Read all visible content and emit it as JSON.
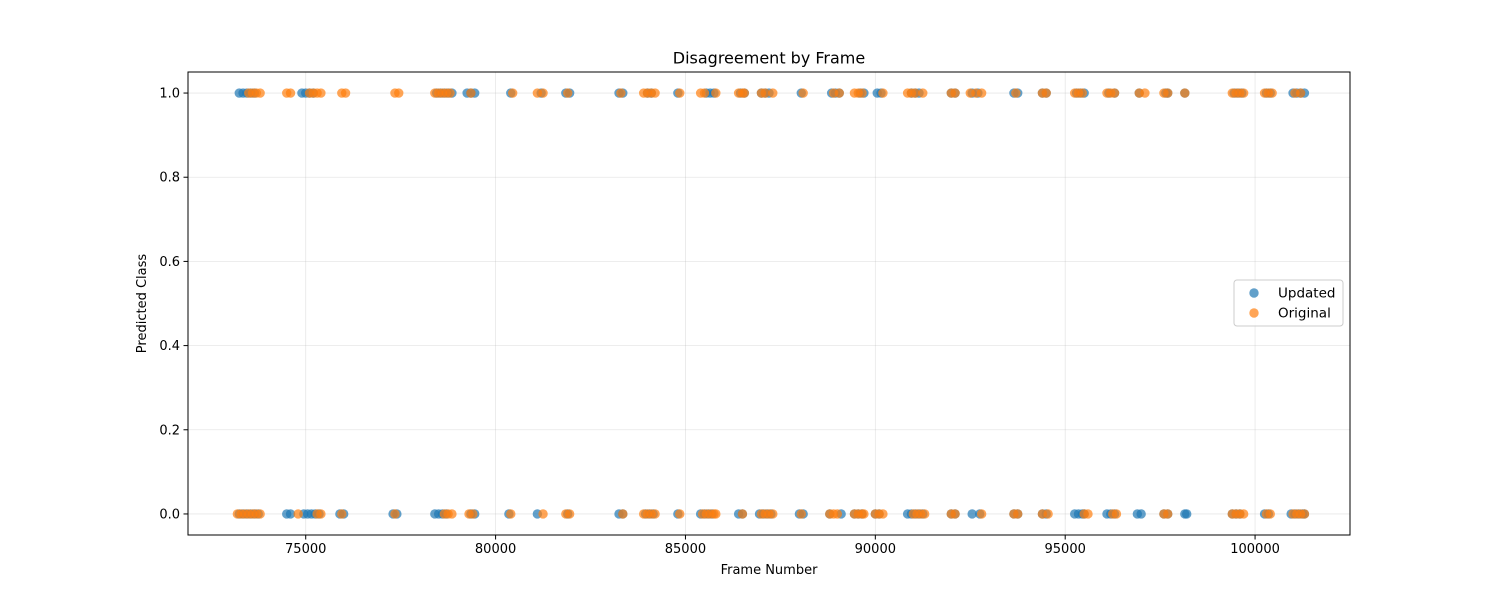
{
  "chart_data": {
    "type": "scatter",
    "title": "Disagreement by Frame",
    "xlabel": "Frame Number",
    "ylabel": "Predicted Class",
    "xlim": [
      71900,
      102500
    ],
    "ylim": [
      -0.05,
      1.05
    ],
    "x_ticks": [
      75000,
      80000,
      85000,
      90000,
      95000,
      100000
    ],
    "y_ticks": [
      0.0,
      0.2,
      0.4,
      0.6,
      0.8,
      1.0
    ],
    "x_tick_labels": [
      "75000",
      "80000",
      "85000",
      "90000",
      "95000",
      "100000"
    ],
    "y_tick_labels": [
      "0.0",
      "0.2",
      "0.4",
      "0.6",
      "0.8",
      "1.0"
    ],
    "grid": true,
    "legend_position": "center-right",
    "series": [
      {
        "name": "Updated",
        "color": "#1f77b4",
        "points": [
          [
            73250,
            1
          ],
          [
            73350,
            1
          ],
          [
            73450,
            1
          ],
          [
            73550,
            1
          ],
          [
            73650,
            1
          ],
          [
            74900,
            1
          ],
          [
            75000,
            1
          ],
          [
            75100,
            1
          ],
          [
            75200,
            1
          ],
          [
            78450,
            1
          ],
          [
            78550,
            1
          ],
          [
            78650,
            1
          ],
          [
            78750,
            1
          ],
          [
            78850,
            1
          ],
          [
            79250,
            1
          ],
          [
            79350,
            1
          ],
          [
            79450,
            1
          ],
          [
            80400,
            1
          ],
          [
            81200,
            1
          ],
          [
            81850,
            1
          ],
          [
            81950,
            1
          ],
          [
            83250,
            1
          ],
          [
            83350,
            1
          ],
          [
            84000,
            1
          ],
          [
            84100,
            1
          ],
          [
            84800,
            1
          ],
          [
            85550,
            1
          ],
          [
            85650,
            1
          ],
          [
            85750,
            1
          ],
          [
            86450,
            1
          ],
          [
            86550,
            1
          ],
          [
            87000,
            1
          ],
          [
            87100,
            1
          ],
          [
            87200,
            1
          ],
          [
            88050,
            1
          ],
          [
            88850,
            1
          ],
          [
            88950,
            1
          ],
          [
            89050,
            1
          ],
          [
            89600,
            1
          ],
          [
            89700,
            1
          ],
          [
            90050,
            1
          ],
          [
            90150,
            1
          ],
          [
            90950,
            1
          ],
          [
            91050,
            1
          ],
          [
            91150,
            1
          ],
          [
            92000,
            1
          ],
          [
            92100,
            1
          ],
          [
            92550,
            1
          ],
          [
            92700,
            1
          ],
          [
            93650,
            1
          ],
          [
            93750,
            1
          ],
          [
            94400,
            1
          ],
          [
            94500,
            1
          ],
          [
            95300,
            1
          ],
          [
            95400,
            1
          ],
          [
            95500,
            1
          ],
          [
            96150,
            1
          ],
          [
            96300,
            1
          ],
          [
            96950,
            1
          ],
          [
            97650,
            1
          ],
          [
            97700,
            1
          ],
          [
            98150,
            1
          ],
          [
            99450,
            1
          ],
          [
            99550,
            1
          ],
          [
            99650,
            1
          ],
          [
            100300,
            1
          ],
          [
            100400,
            1
          ],
          [
            101000,
            1
          ],
          [
            101100,
            1
          ],
          [
            101200,
            1
          ],
          [
            101300,
            1
          ],
          [
            73250,
            0
          ],
          [
            73350,
            0
          ],
          [
            73450,
            0
          ],
          [
            73550,
            0
          ],
          [
            73650,
            0
          ],
          [
            73750,
            0
          ],
          [
            74500,
            0
          ],
          [
            74600,
            0
          ],
          [
            74950,
            0
          ],
          [
            75050,
            0
          ],
          [
            75150,
            0
          ],
          [
            75250,
            0
          ],
          [
            75350,
            0
          ],
          [
            75900,
            0
          ],
          [
            76000,
            0
          ],
          [
            77300,
            0
          ],
          [
            77400,
            0
          ],
          [
            78400,
            0
          ],
          [
            78500,
            0
          ],
          [
            78600,
            0
          ],
          [
            78700,
            0
          ],
          [
            79350,
            0
          ],
          [
            79450,
            0
          ],
          [
            80350,
            0
          ],
          [
            81100,
            0
          ],
          [
            81900,
            0
          ],
          [
            83250,
            0
          ],
          [
            83350,
            0
          ],
          [
            83950,
            0
          ],
          [
            84050,
            0
          ],
          [
            84150,
            0
          ],
          [
            84800,
            0
          ],
          [
            85400,
            0
          ],
          [
            85500,
            0
          ],
          [
            85600,
            0
          ],
          [
            85700,
            0
          ],
          [
            86400,
            0
          ],
          [
            86500,
            0
          ],
          [
            86950,
            0
          ],
          [
            87050,
            0
          ],
          [
            87150,
            0
          ],
          [
            87250,
            0
          ],
          [
            88000,
            0
          ],
          [
            88100,
            0
          ],
          [
            88800,
            0
          ],
          [
            89100,
            0
          ],
          [
            89450,
            0
          ],
          [
            89550,
            0
          ],
          [
            89650,
            0
          ],
          [
            90000,
            0
          ],
          [
            90100,
            0
          ],
          [
            90850,
            0
          ],
          [
            90950,
            0
          ],
          [
            91050,
            0
          ],
          [
            91150,
            0
          ],
          [
            91250,
            0
          ],
          [
            92000,
            0
          ],
          [
            92100,
            0
          ],
          [
            92550,
            0
          ],
          [
            92750,
            0
          ],
          [
            93650,
            0
          ],
          [
            93750,
            0
          ],
          [
            94400,
            0
          ],
          [
            94500,
            0
          ],
          [
            95250,
            0
          ],
          [
            95350,
            0
          ],
          [
            95450,
            0
          ],
          [
            95500,
            0
          ],
          [
            96100,
            0
          ],
          [
            96200,
            0
          ],
          [
            96300,
            0
          ],
          [
            96900,
            0
          ],
          [
            97000,
            0
          ],
          [
            97600,
            0
          ],
          [
            97700,
            0
          ],
          [
            98150,
            0
          ],
          [
            98200,
            0
          ],
          [
            99400,
            0
          ],
          [
            99500,
            0
          ],
          [
            99600,
            0
          ],
          [
            100250,
            0
          ],
          [
            100350,
            0
          ],
          [
            100950,
            0
          ],
          [
            101050,
            0
          ],
          [
            101150,
            0
          ],
          [
            101250,
            0
          ],
          [
            101300,
            0
          ]
        ]
      },
      {
        "name": "Original",
        "color": "#ff7f0e",
        "points": [
          [
            73500,
            1
          ],
          [
            73600,
            1
          ],
          [
            73700,
            1
          ],
          [
            73800,
            1
          ],
          [
            74500,
            1
          ],
          [
            74600,
            1
          ],
          [
            75100,
            1
          ],
          [
            75200,
            1
          ],
          [
            75300,
            1
          ],
          [
            75400,
            1
          ],
          [
            75950,
            1
          ],
          [
            76050,
            1
          ],
          [
            77350,
            1
          ],
          [
            77450,
            1
          ],
          [
            78400,
            1
          ],
          [
            78500,
            1
          ],
          [
            78600,
            1
          ],
          [
            78700,
            1
          ],
          [
            78800,
            1
          ],
          [
            79350,
            1
          ],
          [
            80450,
            1
          ],
          [
            81100,
            1
          ],
          [
            81250,
            1
          ],
          [
            81900,
            1
          ],
          [
            83300,
            1
          ],
          [
            83900,
            1
          ],
          [
            84000,
            1
          ],
          [
            84100,
            1
          ],
          [
            84200,
            1
          ],
          [
            84850,
            1
          ],
          [
            85400,
            1
          ],
          [
            85500,
            1
          ],
          [
            85800,
            1
          ],
          [
            86400,
            1
          ],
          [
            86500,
            1
          ],
          [
            86550,
            1
          ],
          [
            87000,
            1
          ],
          [
            87100,
            1
          ],
          [
            87300,
            1
          ],
          [
            88100,
            1
          ],
          [
            88900,
            1
          ],
          [
            89050,
            1
          ],
          [
            89450,
            1
          ],
          [
            89550,
            1
          ],
          [
            89650,
            1
          ],
          [
            90200,
            1
          ],
          [
            90850,
            1
          ],
          [
            90950,
            1
          ],
          [
            91050,
            1
          ],
          [
            91250,
            1
          ],
          [
            92000,
            1
          ],
          [
            92100,
            1
          ],
          [
            92500,
            1
          ],
          [
            92650,
            1
          ],
          [
            92800,
            1
          ],
          [
            93700,
            1
          ],
          [
            94400,
            1
          ],
          [
            94500,
            1
          ],
          [
            95250,
            1
          ],
          [
            95350,
            1
          ],
          [
            95450,
            1
          ],
          [
            96100,
            1
          ],
          [
            96200,
            1
          ],
          [
            96300,
            1
          ],
          [
            96950,
            1
          ],
          [
            97100,
            1
          ],
          [
            97600,
            1
          ],
          [
            97700,
            1
          ],
          [
            98150,
            1
          ],
          [
            99400,
            1
          ],
          [
            99500,
            1
          ],
          [
            99600,
            1
          ],
          [
            99700,
            1
          ],
          [
            100250,
            1
          ],
          [
            100350,
            1
          ],
          [
            100450,
            1
          ],
          [
            101050,
            1
          ],
          [
            101200,
            1
          ],
          [
            73200,
            0
          ],
          [
            73300,
            0
          ],
          [
            73400,
            0
          ],
          [
            73500,
            0
          ],
          [
            73600,
            0
          ],
          [
            73700,
            0
          ],
          [
            73800,
            0
          ],
          [
            74800,
            0
          ],
          [
            75400,
            0
          ],
          [
            75300,
            0
          ],
          [
            75950,
            0
          ],
          [
            77350,
            0
          ],
          [
            78650,
            0
          ],
          [
            78750,
            0
          ],
          [
            78850,
            0
          ],
          [
            79300,
            0
          ],
          [
            79400,
            0
          ],
          [
            80400,
            0
          ],
          [
            81250,
            0
          ],
          [
            81850,
            0
          ],
          [
            81950,
            0
          ],
          [
            83350,
            0
          ],
          [
            83900,
            0
          ],
          [
            84000,
            0
          ],
          [
            84100,
            0
          ],
          [
            84200,
            0
          ],
          [
            84850,
            0
          ],
          [
            85450,
            0
          ],
          [
            85550,
            0
          ],
          [
            85650,
            0
          ],
          [
            85750,
            0
          ],
          [
            85800,
            0
          ],
          [
            86500,
            0
          ],
          [
            87000,
            0
          ],
          [
            87100,
            0
          ],
          [
            87200,
            0
          ],
          [
            87300,
            0
          ],
          [
            88050,
            0
          ],
          [
            88800,
            0
          ],
          [
            88900,
            0
          ],
          [
            89000,
            0
          ],
          [
            89450,
            0
          ],
          [
            89550,
            0
          ],
          [
            89650,
            0
          ],
          [
            89700,
            0
          ],
          [
            90000,
            0
          ],
          [
            90100,
            0
          ],
          [
            90200,
            0
          ],
          [
            91000,
            0
          ],
          [
            91100,
            0
          ],
          [
            91200,
            0
          ],
          [
            91300,
            0
          ],
          [
            92000,
            0
          ],
          [
            92100,
            0
          ],
          [
            92800,
            0
          ],
          [
            93650,
            0
          ],
          [
            93750,
            0
          ],
          [
            94400,
            0
          ],
          [
            94550,
            0
          ],
          [
            95500,
            0
          ],
          [
            95600,
            0
          ],
          [
            96250,
            0
          ],
          [
            96350,
            0
          ],
          [
            97600,
            0
          ],
          [
            97700,
            0
          ],
          [
            99400,
            0
          ],
          [
            99500,
            0
          ],
          [
            99600,
            0
          ],
          [
            99700,
            0
          ],
          [
            100300,
            0
          ],
          [
            100400,
            0
          ],
          [
            101000,
            0
          ],
          [
            101100,
            0
          ],
          [
            101200,
            0
          ],
          [
            101300,
            0
          ]
        ]
      }
    ]
  }
}
